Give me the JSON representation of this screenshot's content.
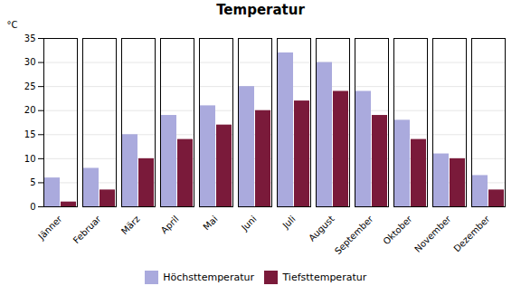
{
  "chart_data": {
    "type": "bar",
    "title": "Temperatur",
    "ylabel": "°C",
    "categories": [
      "Jänner",
      "Februar",
      "März",
      "April",
      "Mai",
      "Juni",
      "Juli",
      "August",
      "September",
      "Oktober",
      "November",
      "Dezember"
    ],
    "series": [
      {
        "name": "Höchsttemperatur",
        "color": "#aaaadd",
        "values": [
          6,
          8,
          15,
          19,
          21,
          25,
          32,
          30,
          24,
          18,
          11,
          6.5
        ]
      },
      {
        "name": "Tiefsttemperatur",
        "color": "#7a1a3a",
        "values": [
          1,
          3.5,
          10,
          14,
          17,
          20,
          22,
          24,
          19,
          14,
          10,
          3.5
        ]
      }
    ],
    "ylim": [
      0,
      35
    ],
    "yticks": [
      0,
      5,
      10,
      15,
      20,
      25,
      30,
      35
    ],
    "grid": true,
    "legend": "bottom"
  }
}
